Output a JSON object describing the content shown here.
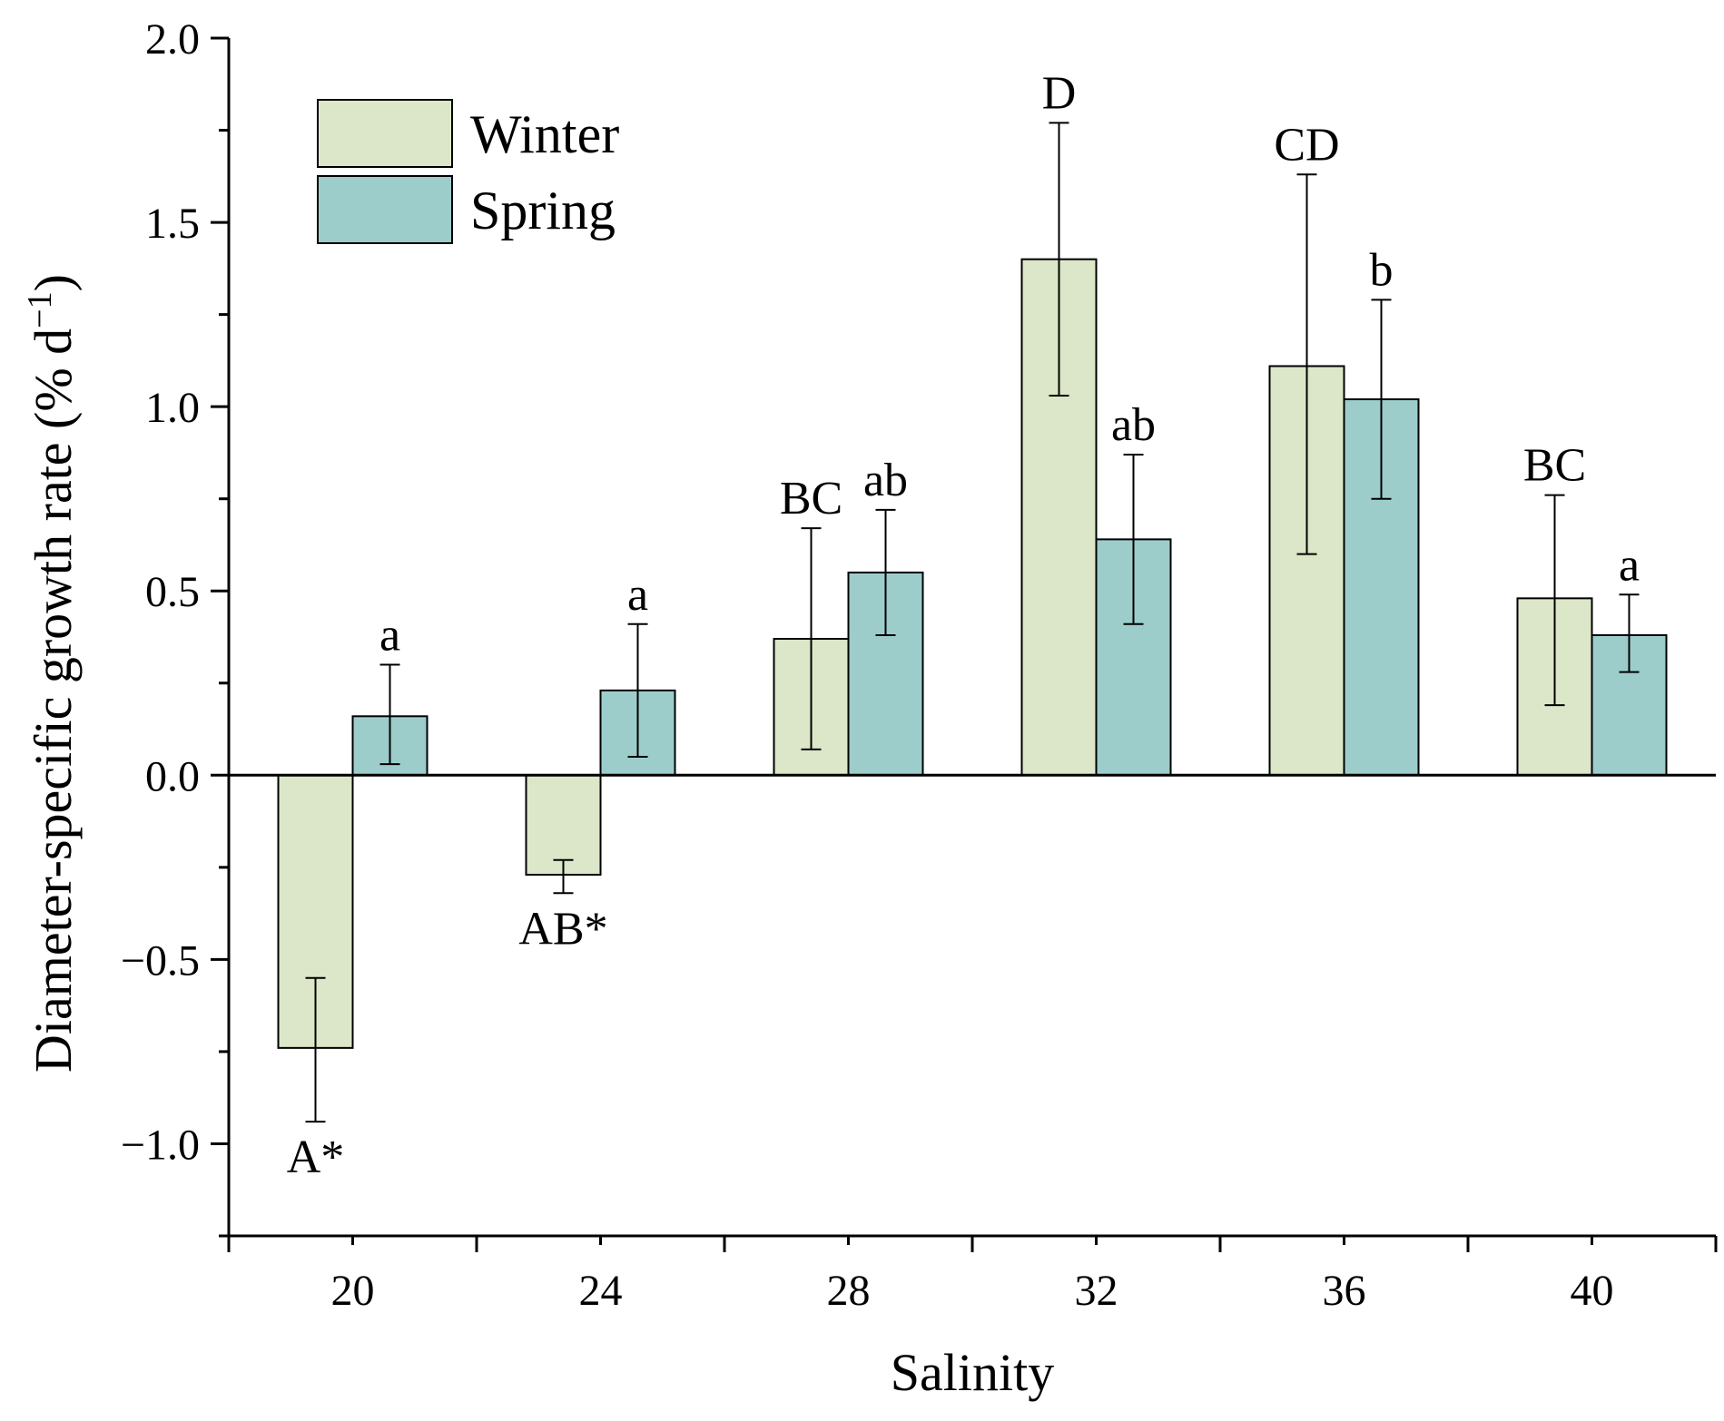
{
  "chart_data": {
    "type": "bar",
    "xlabel": "Salinity",
    "ylabel": "Diameter-specific growth rate (% d",
    "ylabel_superscript": "−1",
    "ylabel_close": ")",
    "ylim": [
      -1.25,
      2.0
    ],
    "yticks": [
      2.0,
      1.5,
      1.0,
      0.5,
      0.0,
      -0.5,
      -1.0
    ],
    "ytick_labels": [
      "2.0",
      "1.5",
      "1.0",
      "0.5",
      "0.0",
      "−0.5",
      "−1.0"
    ],
    "categories": [
      "20",
      "24",
      "28",
      "32",
      "36",
      "40"
    ],
    "legend_position": "top-left",
    "grid": false,
    "series": [
      {
        "name": "Winter",
        "color": "#dce6c8",
        "values": [
          -0.74,
          -0.27,
          0.37,
          1.4,
          1.11,
          0.48
        ],
        "error_low": [
          -0.94,
          -0.32,
          0.07,
          1.03,
          0.6,
          0.19
        ],
        "error_high": [
          -0.55,
          -0.23,
          0.67,
          1.77,
          1.63,
          0.76
        ],
        "sig_labels": [
          "A*",
          "AB*",
          "BC",
          "D",
          "CD",
          "BC"
        ]
      },
      {
        "name": "Spring",
        "color": "#9ccdcb",
        "values": [
          0.16,
          0.23,
          0.55,
          0.64,
          1.02,
          0.38
        ],
        "error_low": [
          0.03,
          0.05,
          0.38,
          0.41,
          0.75,
          0.28
        ],
        "error_high": [
          0.3,
          0.41,
          0.72,
          0.87,
          1.29,
          0.49
        ],
        "sig_labels": [
          "a",
          "a",
          "ab",
          "ab",
          "b",
          "a"
        ]
      }
    ]
  }
}
